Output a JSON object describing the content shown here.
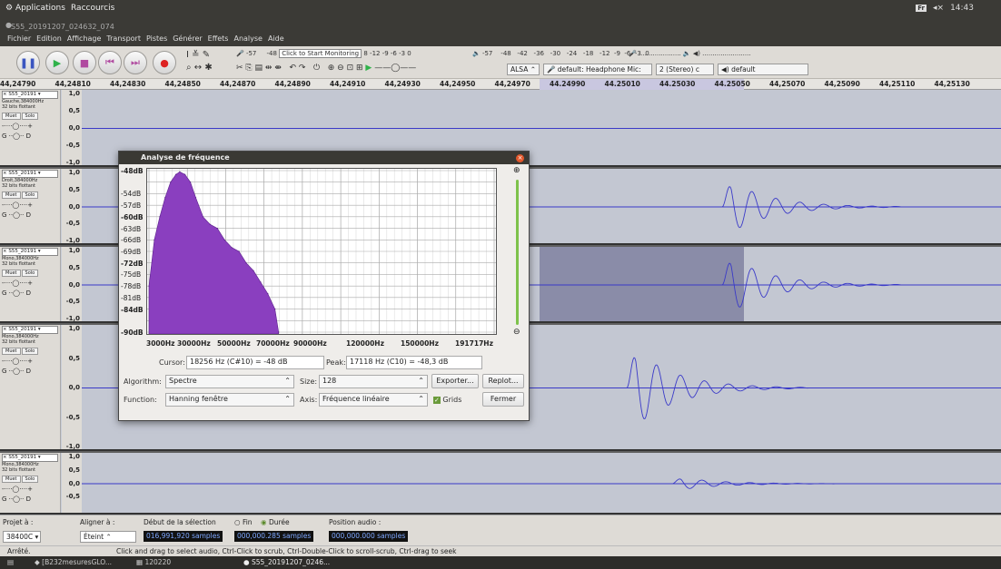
{
  "top_panel": {
    "applications": "Applications",
    "shortcuts": "Raccourcis",
    "keyboard": "Fr",
    "volume": "◂×",
    "clock": "14:43"
  },
  "window": {
    "title": "S55_20191207_024632_074"
  },
  "menu": [
    "Fichier",
    "Edition",
    "Affichage",
    "Transport",
    "Pistes",
    "Générer",
    "Effets",
    "Analyse",
    "Aide"
  ],
  "toolbar": {
    "record_meter_scale": [
      "-57",
      "-48",
      "-42",
      "-36",
      "-30",
      "-24",
      "-18",
      "-12",
      "-9",
      "-6",
      "-3",
      "0"
    ],
    "monitor_label": "Click to Start Monitoring",
    "monitor_scale_tail": "8   -12  -9  -6  -3  0",
    "play_meter_left": "-57",
    "host": "ALSA",
    "recording_device": "default: Headphone Mic:",
    "channels": "2 (Stereo) c",
    "playback_device": "default"
  },
  "ruler": {
    "labels": [
      "44,24790",
      "44,24810",
      "44,24830",
      "44,24850",
      "44,24870",
      "44,24890",
      "44,24910",
      "44,24930",
      "44,24950",
      "44,24970",
      "44.24990",
      "44.25010",
      "44.25030",
      "44.25050",
      "44,25070",
      "44,25090",
      "44,25110",
      "44,25130"
    ]
  },
  "tracks": [
    {
      "name": "S55_20191",
      "rate": "Gauche,384000Hz",
      "format": "32 bits flottant",
      "mute": "Muet",
      "solo": "Solo",
      "left": "G",
      "right": "D",
      "scale": [
        "1,0",
        "0,5",
        "0,0",
        "-0,5",
        "-1,0"
      ]
    },
    {
      "name": "S55_20191",
      "rate": "Droit,384000Hz",
      "format": "32 bits flottant",
      "mute": "Muet",
      "solo": "Solo",
      "left": "G",
      "right": "D",
      "scale": [
        "1,0",
        "0,5",
        "0,0",
        "-0,5",
        "-1,0"
      ]
    },
    {
      "name": "S55_20191",
      "rate": "Mono,384000Hz",
      "format": "32 bits flottant",
      "mute": "Muet",
      "solo": "Solo",
      "left": "G",
      "right": "D",
      "scale": [
        "1,0",
        "0,5",
        "0,0",
        "-0,5",
        "-1,0"
      ]
    },
    {
      "name": "S55_20191",
      "rate": "Mono,384000Hz",
      "format": "32 bits flottant",
      "mute": "Muet",
      "solo": "Solo",
      "left": "G",
      "right": "D",
      "scale": [
        "1,0",
        "0,5",
        "0,0",
        "-0,5",
        "-1,0"
      ]
    },
    {
      "name": "S55_20191",
      "rate": "Mono,384000Hz",
      "format": "32 bits flottant",
      "mute": "Muet",
      "solo": "Solo",
      "left": "G",
      "right": "D",
      "scale": [
        "1,0",
        "0,5",
        "0,0",
        "-0,5"
      ]
    }
  ],
  "dialog": {
    "title": "Analyse de fréquence",
    "y_ticks": [
      "-48dB",
      "-54dB",
      "-57dB",
      "-60dB",
      "-63dB",
      "-66dB",
      "-69dB",
      "-72dB",
      "-75dB",
      "-78dB",
      "-81dB",
      "-84dB",
      "-90dB"
    ],
    "x_ticks": [
      "3000Hz",
      "30000Hz",
      "50000Hz",
      "70000Hz",
      "90000Hz",
      "120000Hz",
      "150000Hz",
      "191717Hz"
    ],
    "cursor_label": "Cursor:",
    "cursor_value": "18256 Hz (C#10) = -48 dB",
    "peak_label": "Peak:",
    "peak_value": "17118 Hz (C10) = -48,3 dB",
    "algorithm_label": "Algorithm:",
    "algorithm_value": "Spectre",
    "size_label": "Size:",
    "size_value": "128",
    "function_label": "Function:",
    "function_value": "Hanning fenêtre",
    "axis_label": "Axis:",
    "axis_value": "Fréquence linéaire",
    "export_button": "Exporter...",
    "replot_button": "Replot...",
    "grids_label": "Grids",
    "grids_checked": true,
    "close_button": "Fermer",
    "fill_color": "#8a3fbf"
  },
  "chart_data": {
    "type": "area",
    "xlabel": "",
    "ylabel": "",
    "xlim": [
      0,
      191717
    ],
    "ylim": [
      -90,
      -48
    ],
    "x": [
      0,
      3000,
      6000,
      9000,
      12000,
      15000,
      17118,
      20000,
      23000,
      26000,
      30000,
      34000,
      38000,
      42000,
      46000,
      50000,
      54000,
      58000,
      62000,
      66000,
      70000,
      72000
    ],
    "y": [
      -78,
      -66,
      -60,
      -55,
      -51,
      -49,
      -48.3,
      -49,
      -51,
      -55,
      -60,
      -62,
      -63,
      -66,
      -68,
      -69,
      -72,
      -74,
      -77,
      -80,
      -84,
      -90
    ]
  },
  "selection_bar": {
    "project_rate_label": "Projet à :",
    "project_rate": "38400C",
    "snap_label": "Aligner à :",
    "snap_value": "Éteint",
    "start_label": "Début de la sélection",
    "end_option": "Fin",
    "length_option": "Durée",
    "audio_pos_label": "Position audio :",
    "sel_start": "016,991,920 samples",
    "sel_length": "000,000.285 samples",
    "audio_pos": "000,000.000 samples"
  },
  "status": {
    "state": "Arrêté.",
    "hint": "Click and drag to select audio, Ctrl-Click to scrub, Ctrl-Double-Click to scroll-scrub, Ctrl-drag to seek"
  },
  "taskbar": [
    "[B232mesuresGLO...",
    "120220",
    "S55_20191207_0246..."
  ]
}
